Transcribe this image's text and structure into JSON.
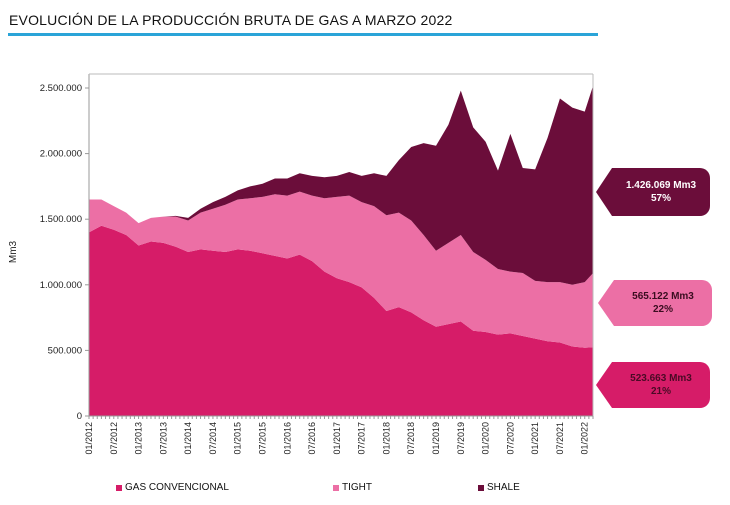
{
  "chart_data": {
    "type": "area",
    "stacked": true,
    "title": "EVOLUCIÓN DE LA PRODUCCIÓN BRUTA DE GAS A MARZO 2022",
    "ylabel": "Mm3",
    "ylim": [
      0,
      2500000
    ],
    "yticks": [
      "0",
      "500.000",
      "1.000.000",
      "1.500.000",
      "2.000.000",
      "2.500.000"
    ],
    "ytick_values": [
      0,
      500000,
      1000000,
      1500000,
      2000000,
      2500000
    ],
    "xticks": [
      "01/2012",
      "07/2012",
      "01/2013",
      "07/2013",
      "01/2014",
      "07/2014",
      "01/2015",
      "07/2015",
      "01/2016",
      "07/2016",
      "01/2017",
      "07/2017",
      "01/2018",
      "07/2018",
      "01/2019",
      "07/2019",
      "01/2020",
      "07/2020",
      "01/2021",
      "07/2021",
      "01/2022"
    ],
    "x_months": [
      0,
      3,
      6,
      9,
      12,
      15,
      18,
      21,
      24,
      27,
      30,
      33,
      36,
      39,
      42,
      45,
      48,
      51,
      54,
      57,
      60,
      63,
      66,
      69,
      72,
      75,
      78,
      81,
      84,
      87,
      90,
      93,
      96,
      99,
      102,
      105,
      108,
      111,
      114,
      117,
      120,
      122
    ],
    "series": [
      {
        "name": "GAS CONVENCIONAL",
        "color": "#d61c68",
        "values_thousands": [
          1400,
          1450,
          1420,
          1380,
          1300,
          1330,
          1320,
          1290,
          1250,
          1270,
          1260,
          1250,
          1270,
          1260,
          1240,
          1220,
          1200,
          1230,
          1180,
          1100,
          1050,
          1020,
          980,
          900,
          800,
          830,
          790,
          730,
          680,
          700,
          720,
          650,
          640,
          620,
          630,
          610,
          590,
          570,
          560,
          530,
          520,
          524
        ]
      },
      {
        "name": "TIGHT",
        "color": "#ec6fa5",
        "values_thousands": [
          250,
          200,
          180,
          170,
          170,
          180,
          200,
          230,
          240,
          280,
          320,
          360,
          380,
          400,
          430,
          470,
          480,
          480,
          500,
          560,
          620,
          660,
          650,
          700,
          730,
          720,
          700,
          650,
          580,
          620,
          660,
          600,
          550,
          500,
          470,
          480,
          440,
          450,
          460,
          470,
          500,
          565
        ]
      },
      {
        "name": "SHALE",
        "color": "#6b0d3a",
        "values_thousands": [
          0,
          0,
          0,
          0,
          0,
          0,
          0,
          5,
          20,
          30,
          50,
          60,
          70,
          90,
          100,
          120,
          130,
          140,
          150,
          160,
          160,
          180,
          200,
          250,
          300,
          400,
          560,
          700,
          800,
          900,
          1100,
          950,
          900,
          750,
          1050,
          800,
          850,
          1100,
          1400,
          1350,
          1300,
          1426
        ]
      }
    ],
    "annotations": [
      {
        "series": "SHALE",
        "value": "1.426.069 Mm3",
        "share": "57%"
      },
      {
        "series": "TIGHT",
        "value": "565.122 Mm3",
        "share": "22%"
      },
      {
        "series": "GAS CONVENCIONAL",
        "value": "523.663 Mm3",
        "share": "21%"
      }
    ],
    "legend_position": "bottom"
  }
}
